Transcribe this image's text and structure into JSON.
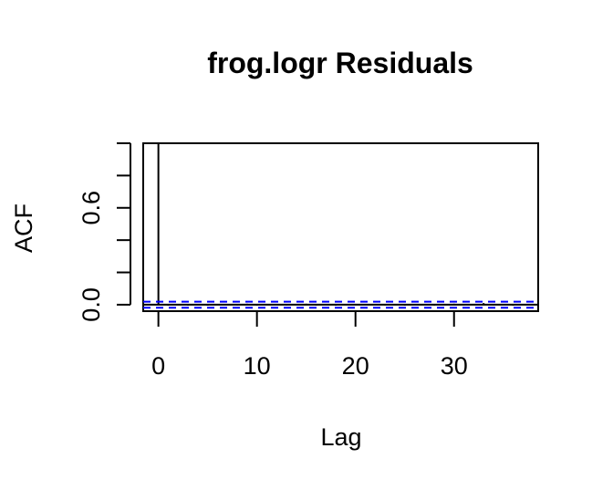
{
  "chart_data": {
    "type": "bar",
    "title": "frog.logr Residuals",
    "xlabel": "Lag",
    "ylabel": "ACF",
    "x_ticks": [
      0,
      10,
      20,
      30
    ],
    "y_ticks": [
      0.0,
      0.6
    ],
    "y_tick_labels": [
      "0.0",
      "0.6"
    ],
    "y_minor_ticks": [
      0.0,
      0.2,
      0.4,
      0.6,
      0.8,
      1.0
    ],
    "xlim": [
      -1.54,
      38.54
    ],
    "ylim": [
      -0.04,
      1.0
    ],
    "lags": [
      0,
      1,
      2,
      3,
      4,
      5,
      6,
      7,
      8,
      9,
      10,
      11,
      12,
      13,
      14,
      15,
      16,
      17,
      18,
      19,
      20,
      21,
      22,
      23,
      24,
      25,
      26,
      27,
      28,
      29,
      30,
      31,
      32,
      33,
      34,
      35,
      36,
      37
    ],
    "acf": [
      1.0,
      -0.006,
      0.004,
      -0.005,
      0.005,
      -0.006,
      0.003,
      0.004,
      -0.004,
      0.006,
      -0.005,
      0.004,
      0.005,
      -0.004,
      0.003,
      0.006,
      -0.005,
      0.004,
      -0.006,
      0.005,
      0.004,
      -0.003,
      0.005,
      -0.004,
      0.004,
      -0.006,
      0.005,
      0.004,
      -0.005,
      0.003,
      0.006,
      -0.004,
      0.005,
      0.01,
      -0.004,
      0.005,
      -0.006,
      0.004
    ],
    "confidence_bound": 0.0185,
    "colors": {
      "spikes": "#000000",
      "confidence": "#0000ff",
      "zero_line": "#000000"
    },
    "grid": false
  }
}
